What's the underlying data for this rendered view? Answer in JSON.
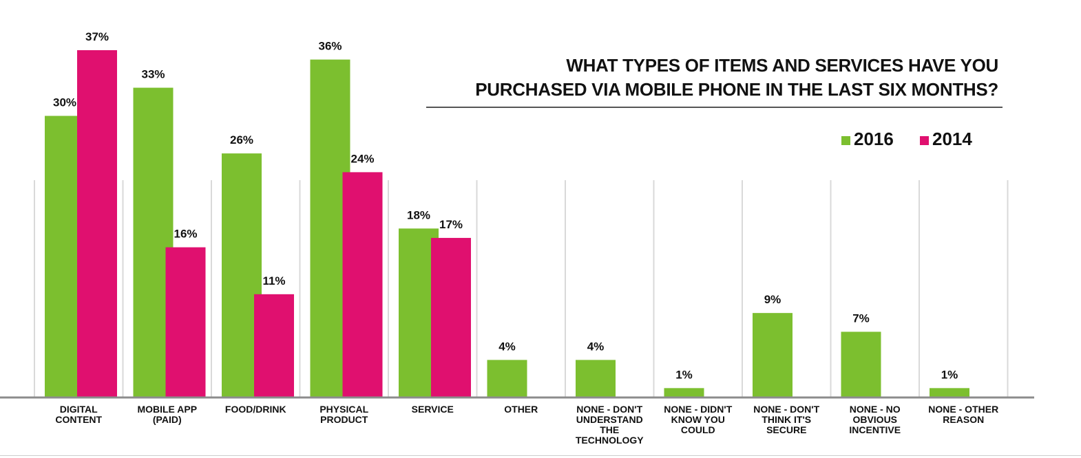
{
  "chart_data": {
    "type": "bar",
    "title": "WHAT TYPES OF ITEMS AND SERVICES HAVE YOU PURCHASED VIA MOBILE PHONE IN THE LAST SIX MONTHS?",
    "title_lines": [
      "WHAT TYPES OF ITEMS AND SERVICES HAVE YOU",
      "PURCHASED VIA MOBILE PHONE IN THE LAST SIX MONTHS?"
    ],
    "categories": [
      [
        "DIGITAL",
        "CONTENT"
      ],
      [
        "MOBILE APP",
        "(PAID)"
      ],
      [
        "FOOD/DRINK"
      ],
      [
        "PHYSICAL",
        "PRODUCT"
      ],
      [
        "SERVICE"
      ],
      [
        "OTHER"
      ],
      [
        "NONE - DON'T",
        "UNDERSTAND",
        "THE",
        "TECHNOLOGY"
      ],
      [
        "NONE - DIDN'T",
        "KNOW YOU",
        "COULD"
      ],
      [
        "NONE - DON'T",
        "THINK IT'S",
        "SECURE"
      ],
      [
        "NONE - NO",
        "OBVIOUS",
        "INCENTIVE"
      ],
      [
        "NONE - OTHER",
        "REASON"
      ]
    ],
    "series": [
      {
        "name": "2016",
        "color": "#7cbf2f",
        "values": [
          30,
          33,
          26,
          36,
          18,
          4,
          4,
          1,
          9,
          7,
          1
        ]
      },
      {
        "name": "2014",
        "color": "#e0106f",
        "values": [
          37,
          16,
          11,
          24,
          17,
          null,
          null,
          null,
          null,
          null,
          null
        ]
      }
    ],
    "value_suffix": "%",
    "ylim": [
      0,
      37
    ],
    "legend": "top-right",
    "grid": false,
    "xlabel": "",
    "ylabel": ""
  }
}
